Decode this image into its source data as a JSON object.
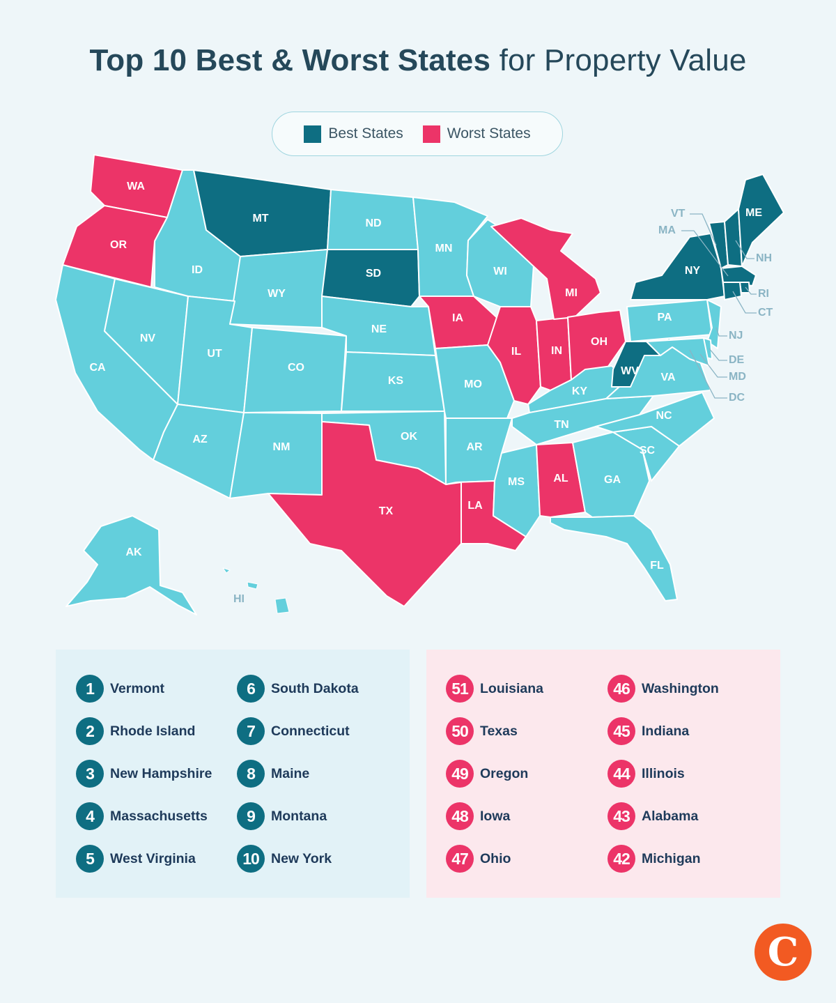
{
  "title": {
    "bold": "Top 10 Best & Worst States",
    "light": " for Property Value"
  },
  "legend": {
    "best_label": "Best States",
    "worst_label": "Worst States"
  },
  "colors": {
    "best": "#0e6e82",
    "worst": "#ec3468",
    "neutral": "#63cfdc",
    "label_text": "#8ab4c4",
    "logo": "#f25a22"
  },
  "map": {
    "best_states": [
      "MT",
      "SD",
      "NY",
      "WV",
      "VT",
      "NH",
      "ME",
      "MA",
      "RI",
      "CT"
    ],
    "worst_states": [
      "WA",
      "OR",
      "IA",
      "IL",
      "IN",
      "MI",
      "OH",
      "TX",
      "LA",
      "AL"
    ],
    "neutral_states": [
      "CA",
      "NV",
      "ID",
      "UT",
      "AZ",
      "WY",
      "CO",
      "NM",
      "ND",
      "NE",
      "KS",
      "OK",
      "MN",
      "MO",
      "AR",
      "MS",
      "WI",
      "KY",
      "TN",
      "GA",
      "FL",
      "SC",
      "NC",
      "VA",
      "PA",
      "NJ",
      "DE",
      "MD",
      "DC",
      "AK",
      "HI"
    ]
  },
  "best_rankings": [
    {
      "rank": "1",
      "state": "Vermont"
    },
    {
      "rank": "2",
      "state": "Rhode Island"
    },
    {
      "rank": "3",
      "state": "New Hampshire"
    },
    {
      "rank": "4",
      "state": "Massachusetts"
    },
    {
      "rank": "5",
      "state": "West Virginia"
    },
    {
      "rank": "6",
      "state": "South Dakota"
    },
    {
      "rank": "7",
      "state": "Connecticut"
    },
    {
      "rank": "8",
      "state": "Maine"
    },
    {
      "rank": "9",
      "state": "Montana"
    },
    {
      "rank": "10",
      "state": "New York"
    }
  ],
  "worst_rankings": [
    {
      "rank": "51",
      "state": "Louisiana"
    },
    {
      "rank": "50",
      "state": "Texas"
    },
    {
      "rank": "49",
      "state": "Oregon"
    },
    {
      "rank": "48",
      "state": "Iowa"
    },
    {
      "rank": "47",
      "state": "Ohio"
    },
    {
      "rank": "46",
      "state": "Washington"
    },
    {
      "rank": "45",
      "state": "Indiana"
    },
    {
      "rank": "44",
      "state": "Illinois"
    },
    {
      "rank": "43",
      "state": "Alabama"
    },
    {
      "rank": "42",
      "state": "Michigan"
    }
  ],
  "logo": {
    "letter": "C"
  }
}
